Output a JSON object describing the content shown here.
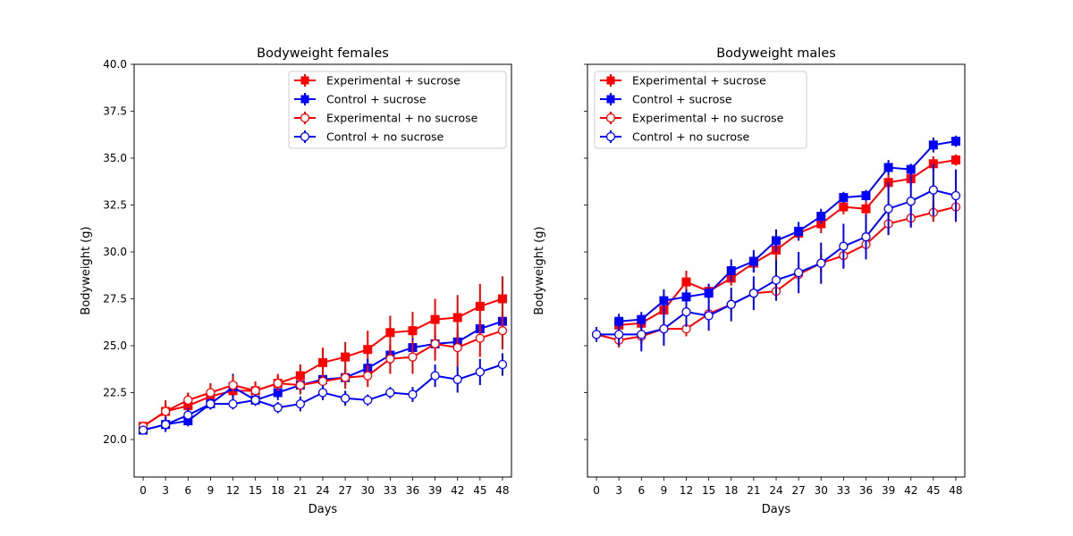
{
  "chart_data": [
    {
      "type": "line",
      "title": "Bodyweight females",
      "xlabel": "Days",
      "ylabel": "Bodyweight (g)",
      "xlim": [
        -1.2,
        49.2
      ],
      "ylim": [
        18.0,
        40.0
      ],
      "xticks": [
        0,
        3,
        6,
        9,
        12,
        15,
        18,
        21,
        24,
        27,
        30,
        33,
        36,
        39,
        42,
        45,
        48
      ],
      "yticks": [
        20.0,
        22.5,
        25.0,
        27.5,
        30.0,
        32.5,
        35.0,
        37.5,
        40.0
      ],
      "ytick_labels": [
        "20.0",
        "22.5",
        "25.0",
        "27.5",
        "30.0",
        "32.5",
        "35.0",
        "37.5",
        "40.0"
      ],
      "legend_position": "upper-right",
      "series": [
        {
          "name": "Experimental + sucrose",
          "color": "#ff0000",
          "marker": "square-filled",
          "x": [
            0,
            3,
            6,
            9,
            12,
            15,
            18,
            21,
            24,
            27,
            30,
            33,
            36,
            39,
            42,
            45,
            48
          ],
          "y": [
            20.7,
            21.5,
            21.8,
            22.3,
            22.6,
            22.6,
            23.0,
            23.4,
            24.1,
            24.4,
            24.8,
            25.7,
            25.8,
            26.4,
            26.5,
            27.1,
            27.5
          ],
          "err": [
            0.2,
            0.6,
            0.7,
            0.7,
            0.5,
            0.5,
            0.5,
            0.6,
            0.8,
            0.8,
            1.0,
            0.9,
            1.0,
            1.1,
            1.2,
            1.2,
            1.2
          ]
        },
        {
          "name": "Control + sucrose",
          "color": "#0000ff",
          "marker": "square-filled",
          "x": [
            0,
            3,
            6,
            9,
            12,
            15,
            18,
            21,
            24,
            27,
            30,
            33,
            36,
            39,
            42,
            45,
            48
          ],
          "y": [
            20.5,
            20.8,
            21.0,
            21.9,
            22.8,
            22.1,
            22.5,
            22.9,
            23.2,
            23.3,
            23.8,
            24.5,
            24.9,
            25.1,
            25.2,
            25.9,
            26.3
          ],
          "err": [
            0.2,
            0.3,
            0.3,
            0.3,
            0.7,
            0.3,
            0.4,
            0.4,
            0.4,
            0.4,
            0.5,
            0.5,
            0.5,
            0.5,
            0.5,
            0.4,
            0.4
          ]
        },
        {
          "name": "Experimental + no sucrose",
          "color": "#ff0000",
          "marker": "circle-open",
          "x": [
            0,
            3,
            6,
            9,
            12,
            15,
            18,
            21,
            24,
            27,
            30,
            33,
            36,
            39,
            42,
            45,
            48
          ],
          "y": [
            20.7,
            21.5,
            22.1,
            22.5,
            22.9,
            22.6,
            23.0,
            22.9,
            23.1,
            23.3,
            23.4,
            24.3,
            24.4,
            25.1,
            24.9,
            25.4,
            25.8
          ],
          "err": [
            0.2,
            0.4,
            0.4,
            0.5,
            0.5,
            0.4,
            0.4,
            0.5,
            0.5,
            0.6,
            0.6,
            0.8,
            0.9,
            0.9,
            1.0,
            1.0,
            1.0
          ]
        },
        {
          "name": "Control + no sucrose",
          "color": "#0000ff",
          "marker": "circle-open",
          "x": [
            0,
            3,
            6,
            9,
            12,
            15,
            18,
            21,
            24,
            27,
            30,
            33,
            36,
            39,
            42,
            45,
            48
          ],
          "y": [
            20.5,
            20.8,
            21.3,
            21.9,
            21.9,
            22.1,
            21.7,
            21.9,
            22.5,
            22.2,
            22.1,
            22.5,
            22.4,
            23.4,
            23.2,
            23.6,
            24.0
          ],
          "err": [
            0.2,
            0.4,
            0.4,
            0.3,
            0.3,
            0.3,
            0.3,
            0.4,
            0.4,
            0.4,
            0.3,
            0.3,
            0.4,
            0.6,
            0.7,
            0.7,
            0.6
          ]
        }
      ]
    },
    {
      "type": "line",
      "title": "Bodyweight males",
      "xlabel": "Days",
      "ylabel": "Bodyweight (g)",
      "xlim": [
        -1.2,
        49.2
      ],
      "ylim": [
        18.0,
        40.0
      ],
      "xticks": [
        0,
        3,
        6,
        9,
        12,
        15,
        18,
        21,
        24,
        27,
        30,
        33,
        36,
        39,
        42,
        45,
        48
      ],
      "yticks": [
        20.0,
        22.5,
        25.0,
        27.5,
        30.0,
        32.5,
        35.0,
        37.5,
        40.0
      ],
      "ytick_labels": [],
      "legend_position": "upper-left",
      "series": [
        {
          "name": "Experimental + sucrose",
          "color": "#ff0000",
          "marker": "square-filled",
          "x": [
            3,
            6,
            9,
            12,
            15,
            18,
            21,
            24,
            27,
            30,
            33,
            36,
            39,
            42,
            45,
            48
          ],
          "y": [
            26.1,
            26.2,
            26.9,
            28.4,
            27.9,
            28.6,
            29.4,
            30.1,
            31.0,
            31.5,
            32.4,
            32.3,
            33.7,
            33.9,
            34.7,
            34.9
          ],
          "err": [
            0.3,
            0.3,
            0.4,
            0.6,
            0.4,
            0.4,
            0.5,
            0.5,
            0.4,
            0.5,
            0.4,
            0.4,
            0.4,
            0.4,
            0.4,
            0.3
          ]
        },
        {
          "name": "Control + sucrose",
          "color": "#0000ff",
          "marker": "square-filled",
          "x": [
            3,
            6,
            9,
            12,
            15,
            18,
            21,
            24,
            27,
            30,
            33,
            36,
            39,
            42,
            45,
            48
          ],
          "y": [
            26.3,
            26.4,
            27.4,
            27.6,
            27.8,
            29.0,
            29.5,
            30.6,
            31.1,
            31.9,
            32.9,
            33.0,
            34.5,
            34.4,
            35.7,
            35.9
          ],
          "err": [
            0.4,
            0.4,
            0.6,
            0.4,
            0.5,
            0.6,
            0.6,
            0.6,
            0.5,
            0.4,
            0.3,
            0.3,
            0.4,
            0.3,
            0.4,
            0.3
          ]
        },
        {
          "name": "Experimental + no sucrose",
          "color": "#ff0000",
          "marker": "circle-open",
          "x": [
            0,
            3,
            6,
            9,
            12,
            15,
            18,
            21,
            24,
            27,
            30,
            33,
            36,
            39,
            42,
            45,
            48
          ],
          "y": [
            25.6,
            25.3,
            25.5,
            25.9,
            25.9,
            26.7,
            27.2,
            27.8,
            27.9,
            28.8,
            29.4,
            29.8,
            30.4,
            31.5,
            31.8,
            32.1,
            32.4
          ],
          "err": [
            0.3,
            0.4,
            0.4,
            0.4,
            0.4,
            0.4,
            0.4,
            0.4,
            0.5,
            0.5,
            0.5,
            0.6,
            0.6,
            0.6,
            0.5,
            0.5,
            0.6
          ]
        },
        {
          "name": "Control + no sucrose",
          "color": "#0000ff",
          "marker": "circle-open",
          "x": [
            0,
            3,
            6,
            9,
            12,
            15,
            18,
            21,
            24,
            27,
            30,
            33,
            36,
            39,
            42,
            45,
            48
          ],
          "y": [
            25.6,
            25.6,
            25.6,
            25.9,
            26.8,
            26.6,
            27.2,
            27.8,
            28.5,
            28.9,
            29.4,
            30.3,
            30.8,
            32.3,
            32.7,
            33.3,
            33.0
          ],
          "err": [
            0.4,
            0.6,
            0.9,
            0.9,
            0.8,
            0.8,
            0.9,
            0.9,
            1.1,
            1.1,
            1.1,
            1.2,
            1.2,
            1.4,
            1.4,
            1.4,
            1.4
          ]
        }
      ]
    }
  ]
}
